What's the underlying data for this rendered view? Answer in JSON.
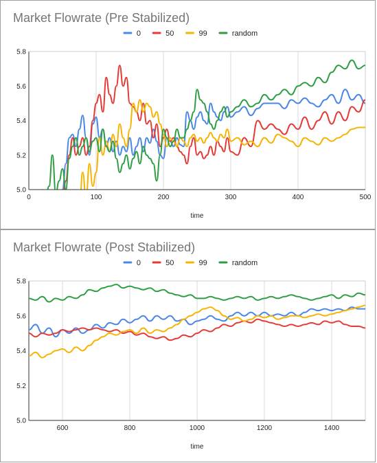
{
  "chart_data": [
    {
      "type": "line",
      "title": "Market Flowrate (Pre Stabilized)",
      "xlabel": "time",
      "ylabel": "",
      "xlim": [
        0,
        500
      ],
      "ylim": [
        5.0,
        5.8
      ],
      "xticks": [
        0,
        100,
        200,
        300,
        400,
        500
      ],
      "yticks": [
        5.0,
        5.2,
        5.4,
        5.6,
        5.8
      ],
      "grid": "vertical",
      "legend_position": "top",
      "series": [
        {
          "name": "0",
          "color": "#4a86e8",
          "x": [
            40,
            50,
            55,
            60,
            65,
            70,
            75,
            80,
            85,
            90,
            95,
            100,
            105,
            110,
            115,
            120,
            125,
            130,
            135,
            140,
            145,
            150,
            155,
            160,
            165,
            170,
            175,
            180,
            185,
            190,
            195,
            200,
            205,
            210,
            215,
            220,
            225,
            230,
            235,
            240,
            245,
            250,
            255,
            260,
            265,
            270,
            275,
            280,
            285,
            290,
            295,
            300,
            310,
            320,
            330,
            340,
            350,
            360,
            370,
            380,
            390,
            400,
            410,
            420,
            430,
            440,
            450,
            460,
            470,
            480,
            490,
            500
          ],
          "y": [
            4.9,
            5.0,
            5.15,
            5.3,
            5.32,
            5.25,
            5.35,
            5.43,
            5.3,
            5.2,
            5.38,
            5.42,
            5.3,
            5.35,
            5.25,
            5.3,
            5.22,
            5.28,
            5.2,
            5.25,
            5.22,
            5.3,
            5.2,
            5.25,
            5.3,
            5.22,
            5.3,
            5.27,
            5.35,
            5.28,
            5.2,
            5.18,
            5.3,
            5.28,
            5.25,
            5.3,
            5.26,
            5.25,
            5.45,
            5.4,
            5.35,
            5.42,
            5.45,
            5.4,
            5.38,
            5.5,
            5.45,
            5.42,
            5.4,
            5.45,
            5.48,
            5.42,
            5.45,
            5.48,
            5.43,
            5.47,
            5.5,
            5.5,
            5.5,
            5.47,
            5.52,
            5.5,
            5.53,
            5.5,
            5.48,
            5.52,
            5.55,
            5.5,
            5.58,
            5.52,
            5.55,
            5.5
          ]
        },
        {
          "name": "50",
          "color": "#e53935",
          "x": [
            40,
            50,
            55,
            60,
            65,
            70,
            75,
            80,
            85,
            90,
            95,
            100,
            105,
            110,
            115,
            120,
            125,
            130,
            135,
            140,
            145,
            150,
            155,
            160,
            165,
            170,
            175,
            180,
            185,
            190,
            195,
            200,
            205,
            210,
            215,
            220,
            225,
            230,
            235,
            240,
            245,
            250,
            255,
            260,
            265,
            270,
            275,
            280,
            285,
            290,
            295,
            300,
            310,
            320,
            330,
            340,
            350,
            360,
            370,
            380,
            390,
            400,
            410,
            420,
            430,
            440,
            450,
            460,
            470,
            480,
            490,
            500
          ],
          "y": [
            4.9,
            4.95,
            5.05,
            5.2,
            5.3,
            5.2,
            5.25,
            5.3,
            5.2,
            5.25,
            5.4,
            5.5,
            5.55,
            5.45,
            5.65,
            5.55,
            5.5,
            5.6,
            5.72,
            5.6,
            5.65,
            5.5,
            5.48,
            5.45,
            5.4,
            5.5,
            5.38,
            5.4,
            5.3,
            5.38,
            5.25,
            5.3,
            5.35,
            5.28,
            5.3,
            5.25,
            5.22,
            5.2,
            5.15,
            5.25,
            5.3,
            5.2,
            5.22,
            5.18,
            5.2,
            5.25,
            5.2,
            5.28,
            5.25,
            5.22,
            5.3,
            5.22,
            5.2,
            5.3,
            5.25,
            5.4,
            5.35,
            5.38,
            5.35,
            5.32,
            5.38,
            5.35,
            5.42,
            5.35,
            5.4,
            5.45,
            5.38,
            5.45,
            5.4,
            5.48,
            5.45,
            5.52
          ]
        },
        {
          "name": "99",
          "color": "#f6b400",
          "x": [
            75,
            80,
            85,
            90,
            95,
            100,
            105,
            110,
            115,
            120,
            125,
            130,
            135,
            140,
            145,
            150,
            155,
            160,
            165,
            170,
            175,
            180,
            185,
            190,
            195,
            200,
            205,
            210,
            215,
            220,
            225,
            230,
            235,
            240,
            245,
            250,
            255,
            260,
            265,
            270,
            275,
            280,
            285,
            290,
            295,
            300,
            310,
            320,
            330,
            340,
            350,
            360,
            370,
            380,
            390,
            400,
            410,
            420,
            430,
            440,
            450,
            460,
            470,
            480,
            490,
            500
          ],
          "y": [
            4.9,
            5.1,
            4.95,
            5.15,
            5.02,
            5.1,
            5.3,
            5.2,
            5.28,
            5.22,
            5.32,
            5.25,
            5.38,
            5.3,
            5.25,
            5.35,
            5.5,
            5.45,
            5.52,
            5.45,
            5.5,
            5.48,
            5.42,
            5.45,
            5.38,
            5.32,
            5.25,
            5.3,
            5.28,
            5.25,
            5.3,
            5.28,
            5.25,
            5.3,
            5.32,
            5.28,
            5.3,
            5.27,
            5.3,
            5.33,
            5.3,
            5.28,
            5.32,
            5.3,
            5.35,
            5.28,
            5.3,
            5.26,
            5.28,
            5.25,
            5.3,
            5.27,
            5.32,
            5.3,
            5.28,
            5.25,
            5.3,
            5.28,
            5.26,
            5.3,
            5.28,
            5.3,
            5.32,
            5.35,
            5.36,
            5.36
          ]
        },
        {
          "name": "random",
          "color": "#2e9e44",
          "x": [
            20,
            25,
            30,
            35,
            40,
            45,
            50,
            55,
            60,
            65,
            70,
            75,
            80,
            85,
            90,
            95,
            100,
            105,
            110,
            115,
            120,
            125,
            130,
            135,
            140,
            145,
            150,
            155,
            160,
            165,
            170,
            175,
            180,
            185,
            190,
            195,
            200,
            205,
            210,
            215,
            220,
            225,
            230,
            235,
            240,
            245,
            250,
            255,
            260,
            265,
            270,
            275,
            280,
            285,
            290,
            295,
            300,
            310,
            320,
            330,
            340,
            350,
            360,
            370,
            380,
            390,
            400,
            410,
            420,
            430,
            440,
            450,
            460,
            470,
            480,
            490,
            500
          ],
          "y": [
            5.0,
            4.95,
            5.02,
            5.2,
            4.98,
            5.05,
            5.12,
            5.0,
            5.18,
            5.25,
            5.3,
            5.2,
            5.25,
            5.3,
            5.22,
            5.28,
            5.3,
            5.22,
            5.35,
            5.25,
            5.22,
            5.28,
            5.18,
            5.1,
            5.15,
            5.2,
            5.12,
            5.18,
            5.22,
            5.15,
            5.25,
            5.2,
            5.18,
            5.15,
            5.05,
            5.2,
            5.35,
            5.3,
            5.25,
            5.28,
            5.35,
            5.3,
            5.3,
            5.35,
            5.4,
            5.45,
            5.58,
            5.52,
            5.5,
            5.45,
            5.38,
            5.35,
            5.4,
            5.45,
            5.48,
            5.42,
            5.45,
            5.48,
            5.52,
            5.48,
            5.5,
            5.55,
            5.52,
            5.55,
            5.58,
            5.55,
            5.6,
            5.62,
            5.6,
            5.65,
            5.62,
            5.68,
            5.72,
            5.7,
            5.75,
            5.7,
            5.72
          ]
        }
      ]
    },
    {
      "type": "line",
      "title": "Market Flowrate (Post Stabilized)",
      "xlabel": "time",
      "ylabel": "",
      "xlim": [
        500,
        1500
      ],
      "ylim": [
        5.0,
        5.8
      ],
      "xticks": [
        600,
        800,
        1000,
        1200,
        1400
      ],
      "yticks": [
        5.0,
        5.2,
        5.4,
        5.6,
        5.8
      ],
      "grid": "vertical",
      "legend_position": "top",
      "series": [
        {
          "name": "0",
          "color": "#4a86e8",
          "x": [
            500,
            520,
            540,
            560,
            580,
            600,
            620,
            640,
            660,
            680,
            700,
            720,
            740,
            760,
            780,
            800,
            820,
            840,
            860,
            880,
            900,
            920,
            940,
            960,
            980,
            1000,
            1020,
            1040,
            1060,
            1080,
            1100,
            1120,
            1140,
            1160,
            1180,
            1200,
            1220,
            1240,
            1260,
            1280,
            1300,
            1320,
            1340,
            1360,
            1380,
            1400,
            1420,
            1440,
            1460,
            1480,
            1500
          ],
          "y": [
            5.52,
            5.55,
            5.5,
            5.53,
            5.48,
            5.52,
            5.5,
            5.53,
            5.5,
            5.52,
            5.55,
            5.53,
            5.56,
            5.55,
            5.58,
            5.56,
            5.58,
            5.6,
            5.57,
            5.6,
            5.58,
            5.6,
            5.57,
            5.58,
            5.55,
            5.57,
            5.58,
            5.6,
            5.58,
            5.57,
            5.6,
            5.62,
            5.6,
            5.62,
            5.6,
            5.62,
            5.6,
            5.61,
            5.6,
            5.62,
            5.6,
            5.62,
            5.64,
            5.63,
            5.64,
            5.63,
            5.64,
            5.63,
            5.65,
            5.64,
            5.64
          ]
        },
        {
          "name": "50",
          "color": "#e53935",
          "x": [
            500,
            520,
            540,
            560,
            580,
            600,
            620,
            640,
            660,
            680,
            700,
            720,
            740,
            760,
            780,
            800,
            820,
            840,
            860,
            880,
            900,
            920,
            940,
            960,
            980,
            1000,
            1020,
            1040,
            1060,
            1080,
            1100,
            1120,
            1140,
            1160,
            1180,
            1200,
            1220,
            1240,
            1260,
            1280,
            1300,
            1320,
            1340,
            1360,
            1380,
            1400,
            1420,
            1440,
            1460,
            1480,
            1500
          ],
          "y": [
            5.5,
            5.48,
            5.5,
            5.49,
            5.5,
            5.52,
            5.51,
            5.52,
            5.53,
            5.52,
            5.53,
            5.52,
            5.51,
            5.52,
            5.5,
            5.51,
            5.49,
            5.5,
            5.48,
            5.47,
            5.48,
            5.46,
            5.47,
            5.49,
            5.48,
            5.5,
            5.52,
            5.51,
            5.53,
            5.55,
            5.54,
            5.56,
            5.57,
            5.56,
            5.58,
            5.57,
            5.56,
            5.55,
            5.54,
            5.55,
            5.54,
            5.55,
            5.56,
            5.55,
            5.57,
            5.56,
            5.57,
            5.55,
            5.54,
            5.54,
            5.53
          ]
        },
        {
          "name": "99",
          "color": "#f6b400",
          "x": [
            500,
            520,
            540,
            560,
            580,
            600,
            620,
            640,
            660,
            680,
            700,
            720,
            740,
            760,
            780,
            800,
            820,
            840,
            860,
            880,
            900,
            920,
            940,
            960,
            980,
            1000,
            1020,
            1040,
            1060,
            1080,
            1100,
            1120,
            1140,
            1160,
            1180,
            1200,
            1220,
            1240,
            1260,
            1280,
            1300,
            1320,
            1340,
            1360,
            1380,
            1400,
            1420,
            1440,
            1460,
            1480,
            1500
          ],
          "y": [
            5.37,
            5.39,
            5.36,
            5.38,
            5.4,
            5.41,
            5.39,
            5.42,
            5.4,
            5.43,
            5.46,
            5.48,
            5.5,
            5.49,
            5.51,
            5.52,
            5.5,
            5.53,
            5.5,
            5.52,
            5.51,
            5.53,
            5.55,
            5.58,
            5.6,
            5.62,
            5.64,
            5.65,
            5.63,
            5.6,
            5.58,
            5.59,
            5.57,
            5.58,
            5.6,
            5.59,
            5.6,
            5.58,
            5.59,
            5.6,
            5.6,
            5.59,
            5.6,
            5.61,
            5.6,
            5.61,
            5.62,
            5.63,
            5.64,
            5.65,
            5.66
          ]
        },
        {
          "name": "random",
          "color": "#2e9e44",
          "x": [
            500,
            520,
            540,
            560,
            580,
            600,
            620,
            640,
            660,
            680,
            700,
            720,
            740,
            760,
            780,
            800,
            820,
            840,
            860,
            880,
            900,
            920,
            940,
            960,
            980,
            1000,
            1020,
            1040,
            1060,
            1080,
            1100,
            1120,
            1140,
            1160,
            1180,
            1200,
            1220,
            1240,
            1260,
            1280,
            1300,
            1320,
            1340,
            1360,
            1380,
            1400,
            1420,
            1440,
            1460,
            1480,
            1500
          ],
          "y": [
            5.7,
            5.69,
            5.71,
            5.68,
            5.7,
            5.69,
            5.71,
            5.7,
            5.72,
            5.75,
            5.74,
            5.76,
            5.77,
            5.78,
            5.76,
            5.77,
            5.76,
            5.75,
            5.76,
            5.74,
            5.75,
            5.73,
            5.72,
            5.71,
            5.72,
            5.7,
            5.7,
            5.71,
            5.7,
            5.69,
            5.7,
            5.71,
            5.7,
            5.71,
            5.69,
            5.7,
            5.71,
            5.7,
            5.71,
            5.72,
            5.71,
            5.7,
            5.69,
            5.7,
            5.71,
            5.72,
            5.7,
            5.72,
            5.71,
            5.73,
            5.72
          ]
        }
      ]
    }
  ]
}
